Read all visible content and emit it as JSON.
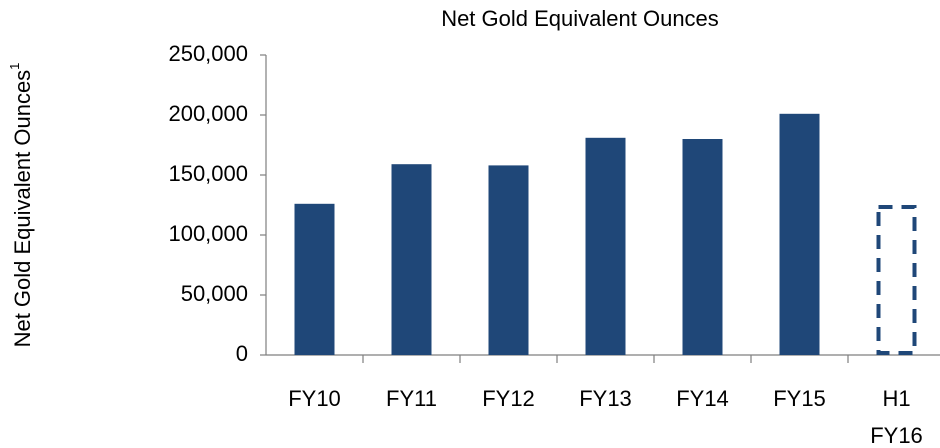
{
  "chart_data": {
    "type": "bar",
    "title": "Net Gold Equivalent Ounces",
    "y_label": "Net Gold Equivalent Ounces",
    "y_label_note": "1",
    "categories": [
      "FY10",
      "FY11",
      "FY12",
      "FY13",
      "FY14",
      "FY15",
      "H1 FY16"
    ],
    "values": [
      126000,
      159000,
      158000,
      181000,
      180000,
      201000,
      125000
    ],
    "styles": [
      "solid",
      "solid",
      "solid",
      "solid",
      "solid",
      "solid",
      "dashed"
    ],
    "color": "#1f4778",
    "ylim": [
      0,
      250000
    ],
    "yticks": [
      0,
      {
        "value": 50000,
        "label": "50,000"
      },
      {
        "value": 100000,
        "label": "100,000"
      },
      {
        "value": 150000,
        "label": "150,000"
      },
      {
        "value": 200000,
        "label": "200,000"
      },
      {
        "value": 250000,
        "label": "250,000"
      }
    ],
    "grid": false
  }
}
